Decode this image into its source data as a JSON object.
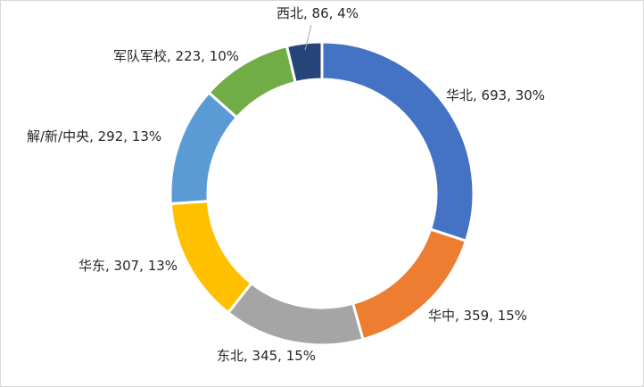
{
  "chart_data": {
    "type": "pie",
    "variant": "donut",
    "title": "",
    "slices": [
      {
        "name": "华北",
        "value": 693,
        "percent": "30%",
        "label": "华北, 693, 30%",
        "color": "#4472C4"
      },
      {
        "name": "华中",
        "value": 359,
        "percent": "15%",
        "label": "华中, 359, 15%",
        "color": "#ED7D31"
      },
      {
        "name": "东北",
        "value": 345,
        "percent": "15%",
        "label": "东北, 345, 15%",
        "color": "#A5A5A5"
      },
      {
        "name": "华东",
        "value": 307,
        "percent": "13%",
        "label": "华东, 307, 13%",
        "color": "#FFC000"
      },
      {
        "name": "解/新/中央",
        "value": 292,
        "percent": "13%",
        "label": "解/新/中央, 292, 13%",
        "color": "#5B9BD5"
      },
      {
        "name": "军队军校",
        "value": 223,
        "percent": "10%",
        "label": "军队军校, 223, 10%",
        "color": "#70AD47"
      },
      {
        "name": "西北",
        "value": 86,
        "percent": "4%",
        "label": "西北, 86, 4%",
        "color": "#264478"
      }
    ],
    "legend": "none"
  }
}
